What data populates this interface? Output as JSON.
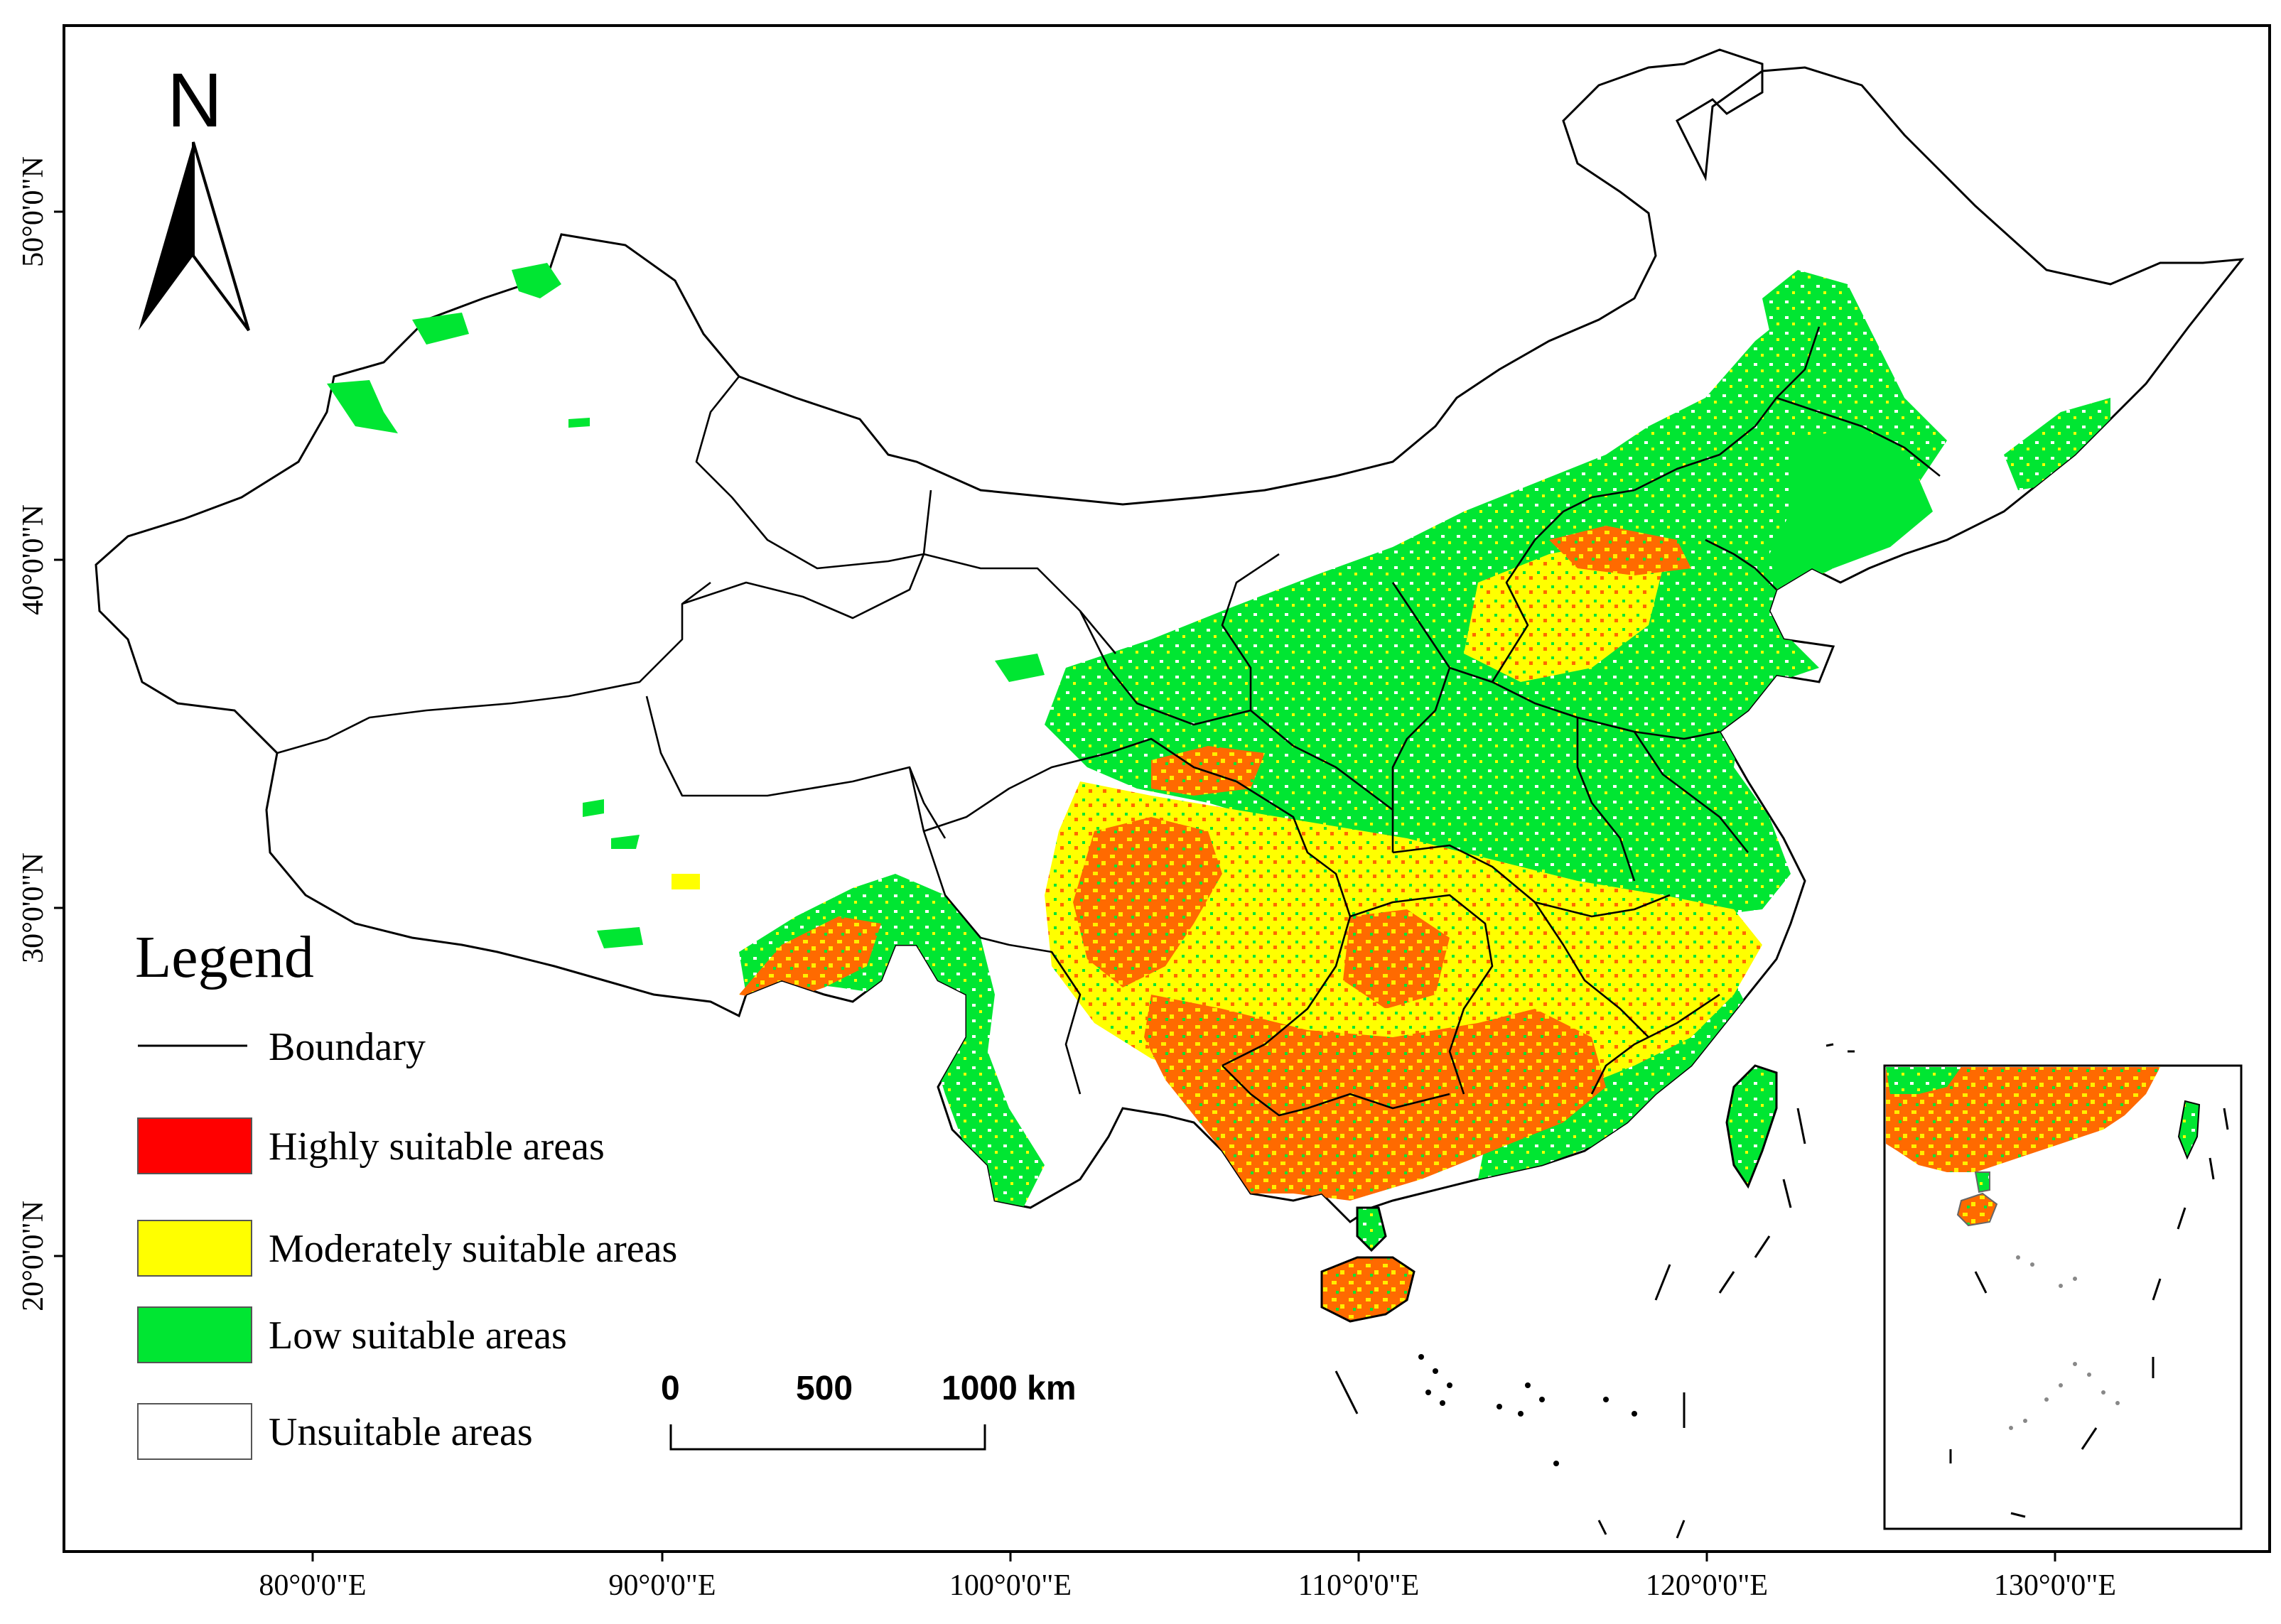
{
  "map": {
    "north_arrow_label": "N",
    "longitude_ticks": [
      "80°0'0\"E",
      "90°0'0\"E",
      "100°0'0\"E",
      "110°0'0\"E",
      "120°0'0\"E",
      "130°0'0\"E"
    ],
    "latitude_ticks": [
      "50°0'0\"N",
      "40°0'0\"N",
      "30°0'0\"N",
      "20°0'0\"N"
    ],
    "scale_bar": {
      "labels": [
        "0",
        "500",
        "1000 km"
      ]
    },
    "legend": {
      "title": "Legend",
      "items": [
        {
          "label": "Boundary",
          "type": "line",
          "color": "#000000"
        },
        {
          "label": "Highly suitable areas",
          "type": "swatch",
          "color": "#ff0000"
        },
        {
          "label": "Moderately suitable areas",
          "type": "swatch",
          "color": "#ffff00"
        },
        {
          "label": "Low suitable areas",
          "type": "swatch",
          "color": "#00e632"
        },
        {
          "label": "Unsuitable areas",
          "type": "swatch",
          "color": "#ffffff"
        }
      ]
    },
    "colors": {
      "high": "#ff0000",
      "high_mixed": "#ff5a00",
      "moderate": "#ffff00",
      "low": "#00e632",
      "unsuitable": "#ffffff",
      "boundary": "#000000"
    }
  }
}
